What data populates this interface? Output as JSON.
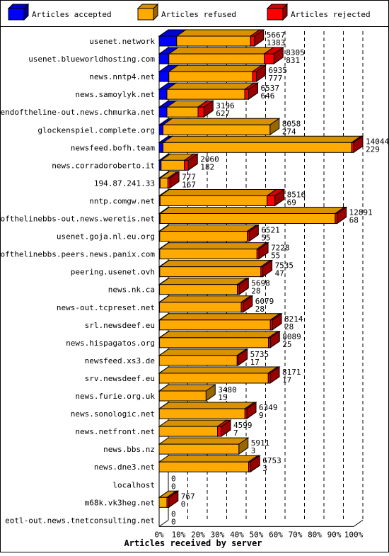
{
  "chart_data": {
    "type": "bar",
    "orientation": "horizontal",
    "stacked": true,
    "xlabel": "Articles received by server",
    "ticks": [
      "0%",
      "10%",
      "20%",
      "30%",
      "40%",
      "50%",
      "60%",
      "70%",
      "80%",
      "90%",
      "100%"
    ],
    "xlim": [
      0,
      100
    ],
    "grid": true,
    "legend_position": "top",
    "series": [
      {
        "name": "Articles accepted",
        "color": "#0000ff"
      },
      {
        "name": "Articles refused",
        "color": "#ffaa00"
      },
      {
        "name": "Articles rejected",
        "color": "#ff0000"
      }
    ],
    "rows": [
      {
        "server": "usenet.network",
        "total": "5667",
        "second": "1383",
        "accepted_pct": 9,
        "refused_pct": 38,
        "rejected_pct": 2
      },
      {
        "server": "usenet.blueworldhosting.com",
        "total": "8305",
        "second": "831",
        "accepted_pct": 5,
        "refused_pct": 49,
        "rejected_pct": 5
      },
      {
        "server": "news.nntp4.net",
        "total": "6935",
        "second": "777",
        "accepted_pct": 5,
        "refused_pct": 43,
        "rejected_pct": 2
      },
      {
        "server": "news.samoylyk.net",
        "total": "6537",
        "second": "646",
        "accepted_pct": 4,
        "refused_pct": 40,
        "rejected_pct": 2
      },
      {
        "server": "endoftheline-out.news.chmurka.net",
        "total": "3196",
        "second": "627",
        "accepted_pct": 4,
        "refused_pct": 16,
        "rejected_pct": 3
      },
      {
        "server": "glockenspiel.complete.org",
        "total": "8058",
        "second": "274",
        "accepted_pct": 2,
        "refused_pct": 55,
        "rejected_pct": 0
      },
      {
        "server": "newsfeed.bofh.team",
        "total": "14044",
        "second": "229",
        "accepted_pct": 2,
        "refused_pct": 97,
        "rejected_pct": 1
      },
      {
        "server": "news.corradoroberto.it",
        "total": "2060",
        "second": "182",
        "accepted_pct": 1,
        "refused_pct": 12,
        "rejected_pct": 2
      },
      {
        "server": "194.87.241.33",
        "total": "777",
        "second": "167",
        "accepted_pct": 0.5,
        "refused_pct": 4,
        "rejected_pct": 1
      },
      {
        "server": "nntp.comgw.net",
        "total": "8516",
        "second": "69",
        "accepted_pct": 0.5,
        "refused_pct": 55,
        "rejected_pct": 4
      },
      {
        "server": "endofthelinebbs-out.news.weretis.net",
        "total": "12891",
        "second": "68",
        "accepted_pct": 0.5,
        "refused_pct": 90,
        "rejected_pct": 1
      },
      {
        "server": "usenet.goja.nl.eu.org",
        "total": "6521",
        "second": "55",
        "accepted_pct": 0.3,
        "refused_pct": 45,
        "rejected_pct": 1
      },
      {
        "server": "endofthelinebbs.peers.news.panix.com",
        "total": "7228",
        "second": "55",
        "accepted_pct": 0.3,
        "refused_pct": 50,
        "rejected_pct": 1
      },
      {
        "server": "peering.usenet.ovh",
        "total": "7535",
        "second": "47",
        "accepted_pct": 0.3,
        "refused_pct": 52,
        "rejected_pct": 1
      },
      {
        "server": "news.nk.ca",
        "total": "5698",
        "second": "28",
        "accepted_pct": 0.2,
        "refused_pct": 40,
        "rejected_pct": 1
      },
      {
        "server": "news-out.tcpreset.net",
        "total": "6079",
        "second": "28",
        "accepted_pct": 0.2,
        "refused_pct": 42,
        "rejected_pct": 1
      },
      {
        "server": "srl.newsdeef.eu",
        "total": "8214",
        "second": "28",
        "accepted_pct": 0.2,
        "refused_pct": 57,
        "rejected_pct": 1
      },
      {
        "server": "news.hispagatos.org",
        "total": "8089",
        "second": "25",
        "accepted_pct": 0.2,
        "refused_pct": 56,
        "rejected_pct": 1
      },
      {
        "server": "newsfeed.xs3.de",
        "total": "5735",
        "second": "17",
        "accepted_pct": 0.1,
        "refused_pct": 40,
        "rejected_pct": 0.5
      },
      {
        "server": "srv.newsdeef.eu",
        "total": "8171",
        "second": "17",
        "accepted_pct": 0.1,
        "refused_pct": 56,
        "rejected_pct": 1
      },
      {
        "server": "news.furie.org.uk",
        "total": "3480",
        "second": "15",
        "accepted_pct": 0.1,
        "refused_pct": 24,
        "rejected_pct": 0
      },
      {
        "server": "news.sonologic.net",
        "total": "6349",
        "second": "9",
        "accepted_pct": 0.1,
        "refused_pct": 44,
        "rejected_pct": 1
      },
      {
        "server": "news.netfront.net",
        "total": "4599",
        "second": "7",
        "accepted_pct": 0,
        "refused_pct": 30,
        "rejected_pct": 2
      },
      {
        "server": "news.bbs.nz",
        "total": "5911",
        "second": "3",
        "accepted_pct": 0,
        "refused_pct": 41,
        "rejected_pct": 0
      },
      {
        "server": "news.dne3.net",
        "total": "6753",
        "second": "3",
        "accepted_pct": 0,
        "refused_pct": 46,
        "rejected_pct": 1
      },
      {
        "server": "localhost",
        "total": "0",
        "second": "0",
        "accepted_pct": 0,
        "refused_pct": 0,
        "rejected_pct": 0
      },
      {
        "server": "m68k.vk3heg.net",
        "total": "767",
        "second": "0",
        "accepted_pct": 0,
        "refused_pct": 4,
        "rejected_pct": 1
      },
      {
        "server": "eotl-out.news.tnetconsulting.net",
        "total": "0",
        "second": "0",
        "accepted_pct": 0,
        "refused_pct": 0,
        "rejected_pct": 0
      }
    ]
  }
}
